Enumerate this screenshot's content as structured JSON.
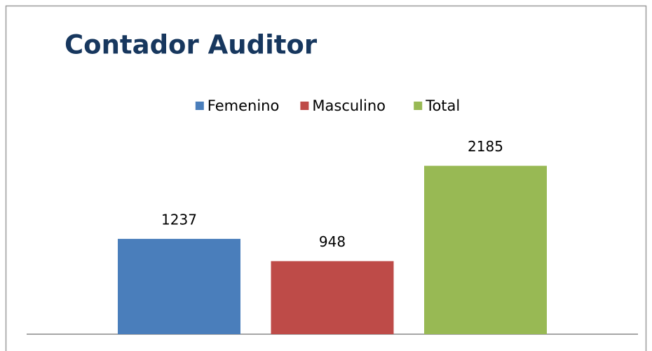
{
  "chart_data": {
    "type": "bar",
    "title": "Contador Auditor",
    "categories": [
      null
    ],
    "series": [
      {
        "name": "Femenino",
        "color": "#4a7ebb",
        "values": [
          1237
        ]
      },
      {
        "name": "Masculino",
        "color": "#be4b48",
        "values": [
          948
        ]
      },
      {
        "name": "Total",
        "color": "#98b954",
        "values": [
          2185
        ]
      }
    ],
    "ylim": [
      0,
      2500
    ],
    "legend": "top",
    "data_labels": true,
    "grid": false
  }
}
